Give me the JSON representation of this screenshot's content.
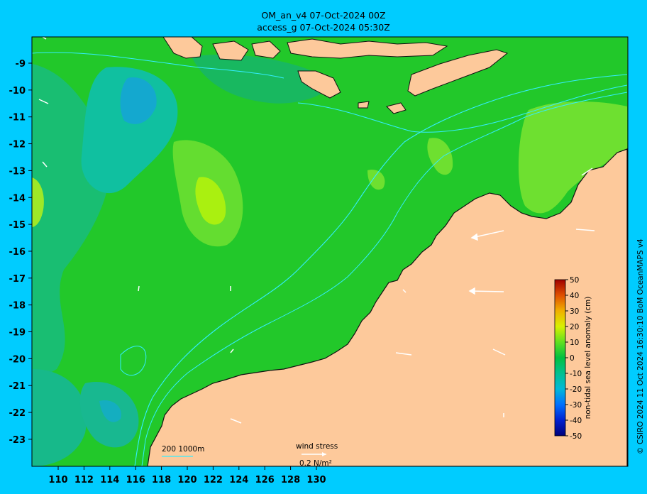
{
  "header": {
    "title_line1": "OM_an_v4  07-Oct-2024 00Z",
    "title_line2": "access_g 07-Oct-2024 05:30Z"
  },
  "axes": {
    "x_ticks": [
      "110",
      "112",
      "114",
      "116",
      "118",
      "120",
      "122",
      "124",
      "126",
      "128",
      "130"
    ],
    "y_ticks": [
      "-9",
      "-10",
      "-11",
      "-12",
      "-13",
      "-14",
      "-15",
      "-16",
      "-17",
      "-18",
      "-19",
      "-20",
      "-21",
      "-22",
      "-23"
    ]
  },
  "legend": {
    "isobath_label": "200  1000m",
    "wind_label": "wind stress",
    "wind_scale": "0.2 N/m²"
  },
  "colorbar": {
    "label": "non-tidal sea level anomaly (cm)",
    "ticks": [
      "50",
      "40",
      "30",
      "20",
      "10",
      "0",
      "-10",
      "-20",
      "-30",
      "-40",
      "-50"
    ]
  },
  "credit": "© CSIRO 2024  11 Oct 2024 16:30:10 BoM OceanMAPS v4",
  "colors": {
    "background": "#00ccff",
    "land": "#fdc99b",
    "ocean_base": "#22c82a",
    "isobath": "#33eeff"
  }
}
